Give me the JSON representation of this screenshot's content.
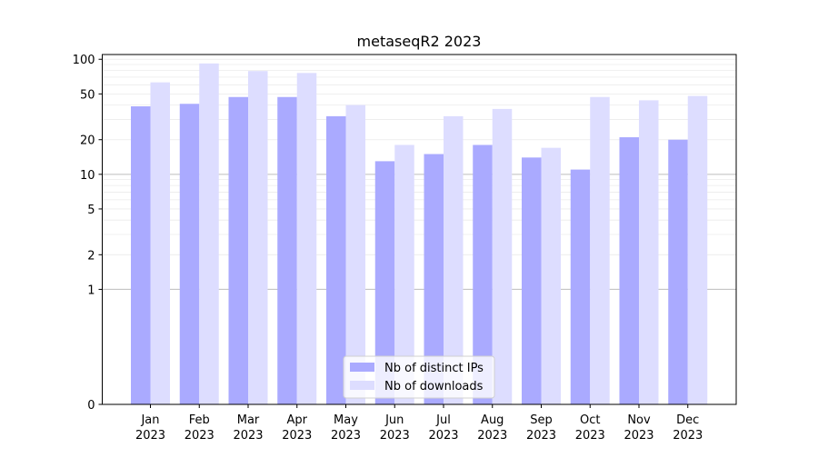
{
  "chart_data": {
    "type": "bar",
    "title": "metaseqR2 2023",
    "xlabel": "",
    "ylabel": "",
    "y_scale": "symlog",
    "ylim": [
      0,
      110
    ],
    "yticks": [
      0,
      1,
      2,
      5,
      10,
      20,
      50,
      100
    ],
    "ytick_labels": [
      "0",
      "1",
      "2",
      "5",
      "10",
      "20",
      "50",
      "100"
    ],
    "grid": "horizontal",
    "legend_position": "bottom-center",
    "categories": [
      "Jan\n2023",
      "Feb\n2023",
      "Mar\n2023",
      "Apr\n2023",
      "May\n2023",
      "Jun\n2023",
      "Jul\n2023",
      "Aug\n2023",
      "Sep\n2023",
      "Oct\n2023",
      "Nov\n2023",
      "Dec\n2023"
    ],
    "series": [
      {
        "name": "Nb of distinct IPs",
        "color": "#aaaaff",
        "values": [
          39,
          41,
          47,
          47,
          32,
          13,
          15,
          18,
          14,
          11,
          21,
          20
        ]
      },
      {
        "name": "Nb of downloads",
        "color": "#ddddff",
        "values": [
          63,
          92,
          79,
          76,
          40,
          18,
          32,
          37,
          17,
          47,
          44,
          48
        ]
      }
    ]
  }
}
